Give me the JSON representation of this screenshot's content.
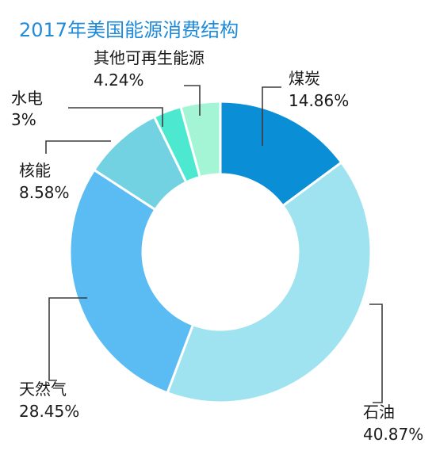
{
  "chart_data": {
    "type": "pie",
    "donut": true,
    "title": "2017年美国能源消费结构",
    "slices": [
      {
        "name": "煤炭",
        "value": 14.86,
        "label": "14.86%",
        "color": "#0a8ed6"
      },
      {
        "name": "石油",
        "value": 40.87,
        "label": "40.87%",
        "color": "#9fe3f0"
      },
      {
        "name": "天然气",
        "value": 28.45,
        "label": "28.45%",
        "color": "#5bbcf4"
      },
      {
        "name": "核能",
        "value": 8.58,
        "label": "8.58%",
        "color": "#73d2e2"
      },
      {
        "name": "水电",
        "value": 3,
        "label": "3%",
        "color": "#4ce8cf"
      },
      {
        "name": "其他可再生能源",
        "value": 4.24,
        "label": "4.24%",
        "color": "#a3f5d6"
      }
    ],
    "start": "top",
    "direction": "clockwise",
    "legend": "none"
  }
}
